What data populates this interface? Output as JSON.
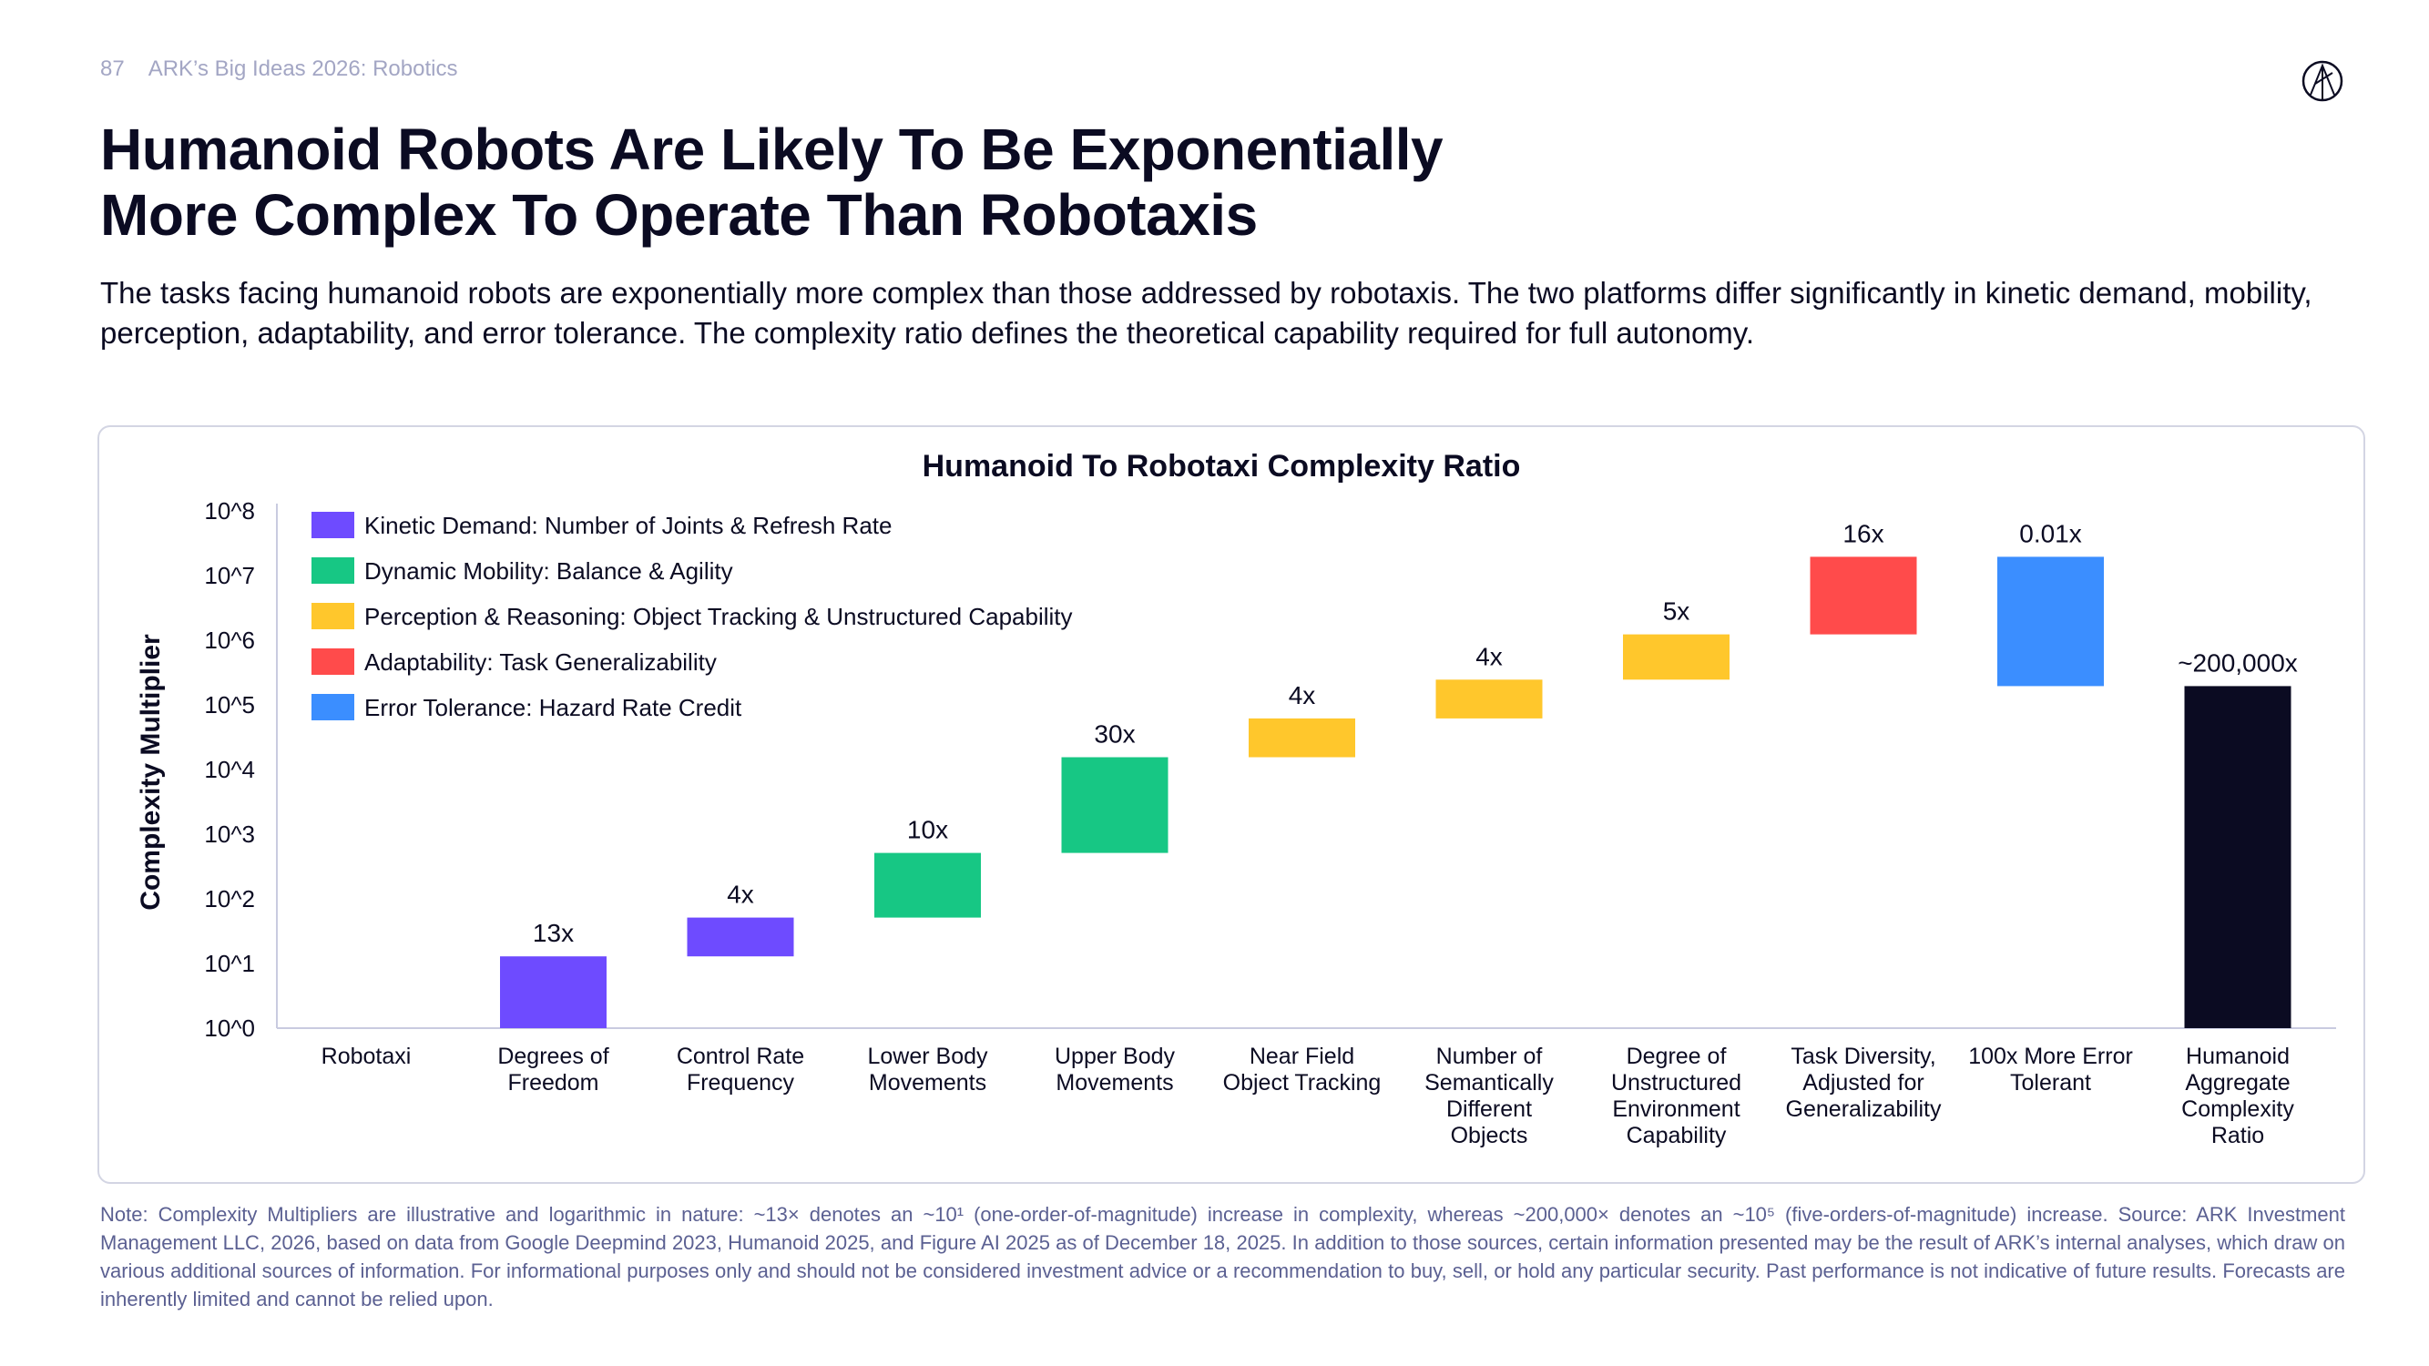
{
  "header": {
    "page_number": "87",
    "deck_title": "ARK’s Big Ideas 2026: Robotics"
  },
  "title_lines": [
    "Humanoid Robots Are Likely To Be Exponentially",
    "More Complex To Operate Than Robotaxis"
  ],
  "subtitle": "The tasks facing humanoid robots are exponentially more complex than those addressed by robotaxis. The two platforms differ significantly in kinetic demand, mobility, perception, adaptability, and error tolerance. The complexity ratio defines the theoretical capability required for full autonomy.",
  "chart_data": {
    "type": "bar",
    "subtype": "waterfall-log",
    "title": "Humanoid To Robotaxi Complexity Ratio",
    "ylabel": "Complexity Multiplier",
    "xlabel": "",
    "yscale": "log10",
    "ylim_exponent": [
      0,
      8
    ],
    "yticks": [
      "10^0",
      "10^1",
      "10^2",
      "10^3",
      "10^4",
      "10^5",
      "10^6",
      "10^7",
      "10^8"
    ],
    "legend_position": "top-left",
    "legend": [
      {
        "key": "kinetic",
        "label": "Kinetic Demand: Number of Joints & Refresh Rate",
        "color": "#6E4BFF"
      },
      {
        "key": "mobility",
        "label": "Dynamic Mobility: Balance & Agility",
        "color": "#17C784"
      },
      {
        "key": "perception",
        "label": "Perception & Reasoning: Object Tracking & Unstructured Capability",
        "color": "#FFC72C"
      },
      {
        "key": "adaptability",
        "label": "Adaptability: Task Generalizability",
        "color": "#FF4B4B"
      },
      {
        "key": "error",
        "label": "Error Tolerance: Hazard Rate Credit",
        "color": "#3B8EFF"
      }
    ],
    "bars": [
      {
        "category": [
          "Robotaxi"
        ],
        "multiplier": 1,
        "label": "",
        "series": null,
        "from_exp": 0,
        "to_exp": 0
      },
      {
        "category": [
          "Degrees of",
          "Freedom"
        ],
        "multiplier": 13,
        "label": "13x",
        "series": "kinetic",
        "from_exp": 0,
        "to_exp": 1.11
      },
      {
        "category": [
          "Control Rate",
          "Frequency"
        ],
        "multiplier": 4,
        "label": "4x",
        "series": "kinetic",
        "from_exp": 1.11,
        "to_exp": 1.71
      },
      {
        "category": [
          "Lower Body",
          "Movements"
        ],
        "multiplier": 10,
        "label": "10x",
        "series": "mobility",
        "from_exp": 1.71,
        "to_exp": 2.71
      },
      {
        "category": [
          "Upper Body",
          "Movements"
        ],
        "multiplier": 30,
        "label": "30x",
        "series": "mobility",
        "from_exp": 2.71,
        "to_exp": 4.19
      },
      {
        "category": [
          "Near Field",
          "Object Tracking"
        ],
        "multiplier": 4,
        "label": "4x",
        "series": "perception",
        "from_exp": 4.19,
        "to_exp": 4.79
      },
      {
        "category": [
          "Number of",
          "Semantically",
          "Different",
          "Objects"
        ],
        "multiplier": 4,
        "label": "4x",
        "series": "perception",
        "from_exp": 4.79,
        "to_exp": 5.39
      },
      {
        "category": [
          "Degree of",
          "Unstructured",
          "Environment",
          "Capability"
        ],
        "multiplier": 5,
        "label": "5x",
        "series": "perception",
        "from_exp": 5.39,
        "to_exp": 6.09
      },
      {
        "category": [
          "Task Diversity,",
          "Adjusted for",
          "Generalizability"
        ],
        "multiplier": 16,
        "label": "16x",
        "series": "adaptability",
        "from_exp": 6.09,
        "to_exp": 7.29
      },
      {
        "category": [
          "100x More Error",
          "Tolerant"
        ],
        "multiplier": 0.01,
        "label": "0.01x",
        "series": "error",
        "from_exp": 7.29,
        "to_exp": 5.29
      },
      {
        "category": [
          "Humanoid",
          "Aggregate",
          "Complexity",
          "Ratio"
        ],
        "multiplier": 200000,
        "label": "~200,000x",
        "series": "total",
        "from_exp": 0,
        "to_exp": 5.29
      }
    ],
    "total_color": "#0B0B22"
  },
  "note": "Note: Complexity Multipliers are illustrative and logarithmic in nature: ~13× denotes an ~10¹ (one-order-of-magnitude) increase in complexity, whereas ~200,000× denotes an ~10⁵ (five-orders-of-magnitude) increase. Source: ARK Investment Management LLC, 2026, based on data from Google Deepmind 2023, Humanoid 2025, and Figure AI 2025 as of December 18, 2025. In addition to those sources, certain information presented may be the result of ARK’s internal analyses, which draw on various additional sources of information. For informational purposes only and should not be considered investment advice or a recommendation to buy, sell, or hold any particular security. Past performance is not indicative of future results. Forecasts are inherently limited and cannot be relied upon."
}
